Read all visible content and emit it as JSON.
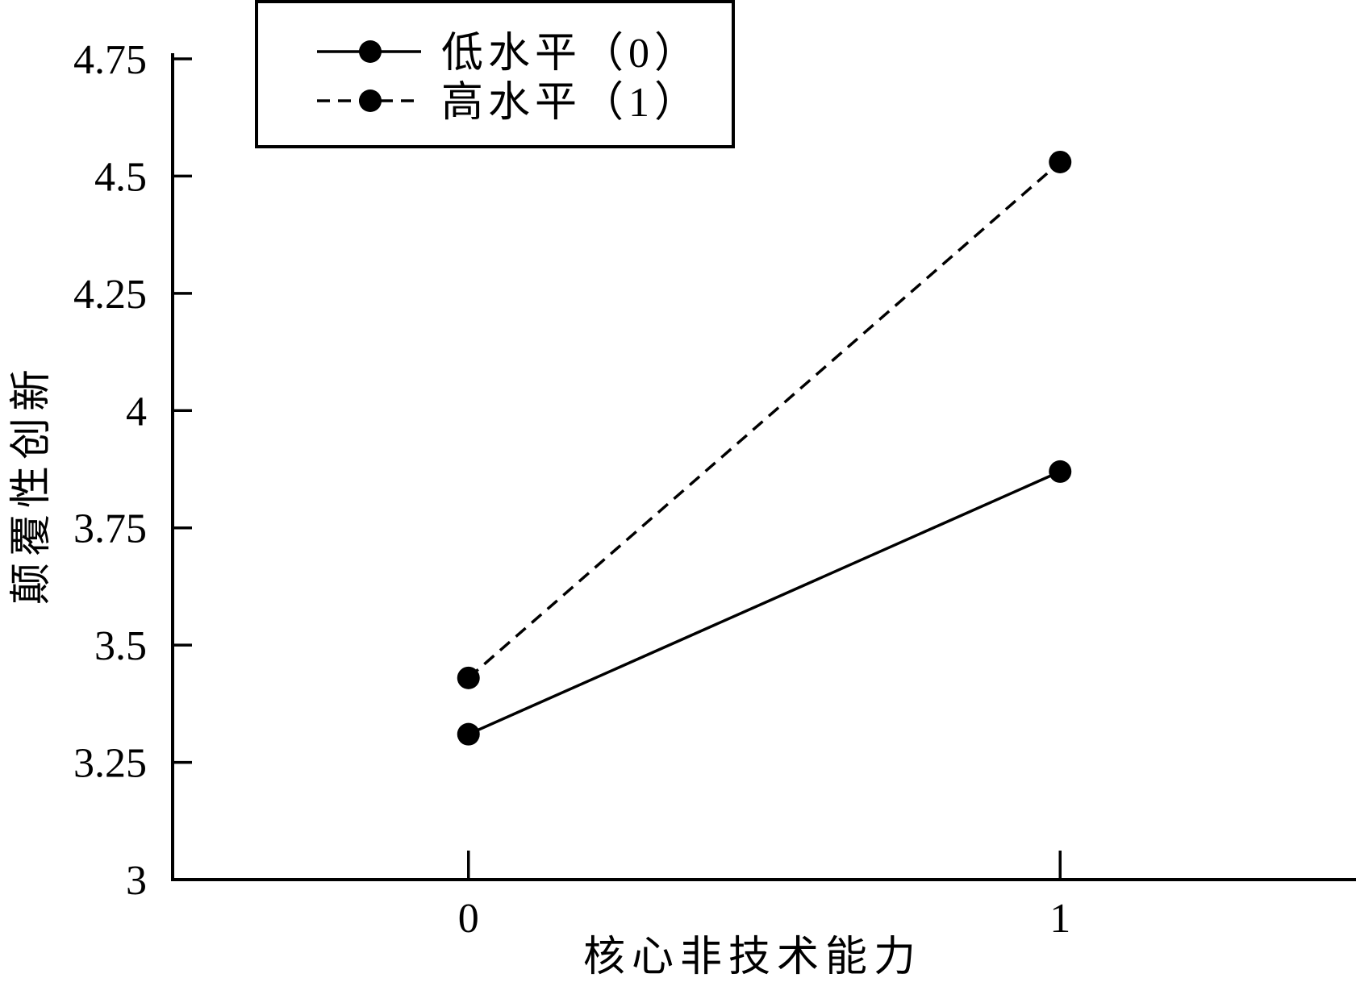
{
  "chart_data": {
    "type": "line",
    "title": "",
    "xlabel": "核心非技术能力",
    "ylabel": "颠覆性创新",
    "x": [
      0,
      1
    ],
    "x_tick_labels": [
      "0",
      "1"
    ],
    "xlim": [
      -0.5,
      1.5
    ],
    "ylim": [
      3,
      4.75
    ],
    "yticks": [
      3,
      3.25,
      3.5,
      3.75,
      4,
      4.25,
      4.5,
      4.75
    ],
    "ytick_labels": [
      "3",
      "3.25",
      "3.5",
      "3.75",
      "4",
      "4.25",
      "4.5",
      "4.75"
    ],
    "grid": false,
    "legend_position": "top-left",
    "series": [
      {
        "name": "低水平（0）",
        "line_style": "solid",
        "marker": "circle",
        "color": "#000000",
        "values": [
          3.31,
          3.87
        ]
      },
      {
        "name": "高水平（1）",
        "line_style": "dashed",
        "marker": "circle",
        "color": "#000000",
        "values": [
          3.43,
          4.53
        ]
      }
    ]
  }
}
